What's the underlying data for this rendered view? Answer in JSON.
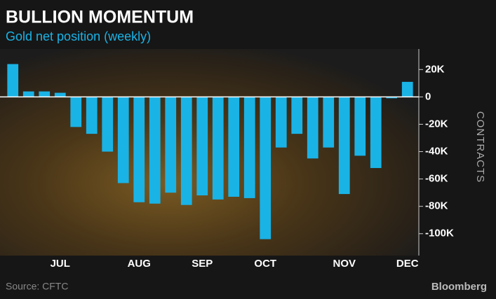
{
  "chart_data": {
    "type": "bar",
    "title": "BULLION MOMENTUM",
    "subtitle": "Gold net position (weekly)",
    "y_label": "CONTRACTS",
    "source": "Source: CFTC",
    "brand": "Bloomberg",
    "categories": [
      null,
      null,
      null,
      "JUL",
      null,
      null,
      null,
      null,
      "AUG",
      null,
      null,
      null,
      "SEP",
      null,
      null,
      null,
      "OCT",
      null,
      null,
      null,
      null,
      "NOV",
      null,
      null,
      null,
      "DEC"
    ],
    "values": [
      24000,
      4000,
      4000,
      3000,
      -22000,
      -27000,
      -40000,
      -63000,
      -77000,
      -78000,
      -70000,
      -79000,
      -72000,
      -75000,
      -73000,
      -74000,
      -104000,
      -37000,
      -27000,
      -45000,
      -37000,
      -71000,
      -43000,
      -52000,
      -1000,
      11000
    ],
    "color": "#1ab3e6",
    "ylim": [
      -116000,
      35000
    ],
    "yticks": [
      {
        "value": 20000,
        "label": "20K"
      },
      0,
      {
        "value": -20000,
        "label": "-20K"
      },
      {
        "value": -40000,
        "label": "-40K"
      },
      {
        "value": -60000,
        "label": "-60K"
      },
      {
        "value": -80000,
        "label": "-80K"
      },
      {
        "value": -100000,
        "label": "-100K"
      }
    ]
  }
}
